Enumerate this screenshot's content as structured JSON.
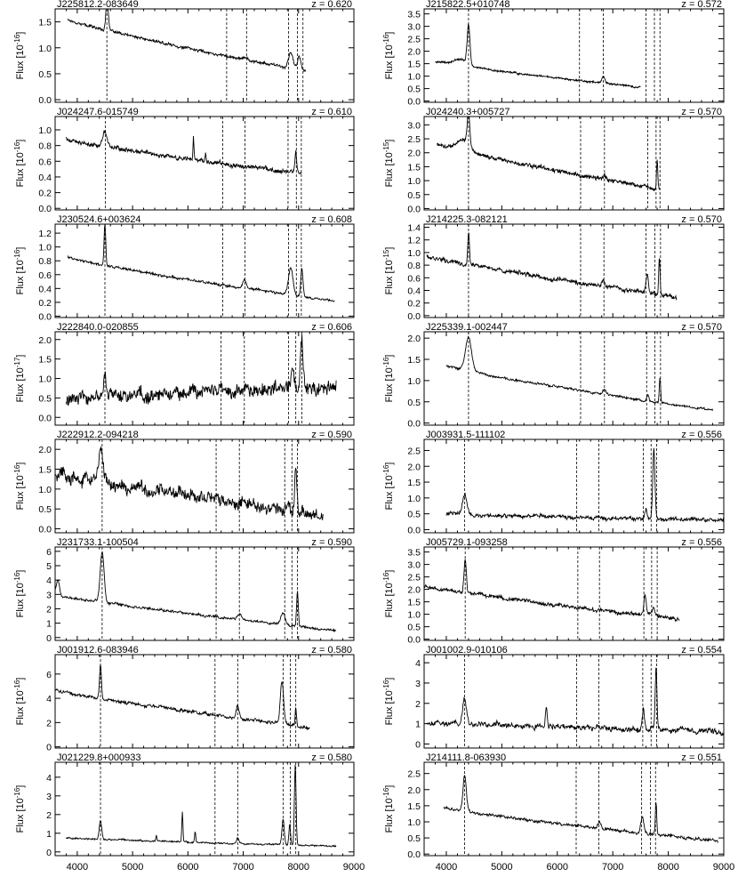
{
  "figure": {
    "x_tick_labels": [
      "4000",
      "5000",
      "6000",
      "7000",
      "8000",
      "9000"
    ],
    "ylabel_prefix": "Flux [10",
    "ylabel_suffix": "]"
  },
  "chart_data": [
    {
      "type": "line",
      "title": "J225812.2-083649",
      "redshift": "z = 0.620",
      "ylabel_exp": "-16",
      "xlim": [
        3600,
        9000
      ],
      "ylim": [
        -0.05,
        1.75
      ],
      "yticks": [
        0.0,
        0.5,
        1.0,
        1.5
      ],
      "x_start": 3830,
      "x_end": 8130,
      "start": 1.55,
      "end": 0.55,
      "noise": 0.03,
      "lines": [
        [
          4540,
          0.6,
          22
        ],
        [
          7050,
          0.05,
          40
        ],
        [
          7860,
          0.3,
          40
        ],
        [
          8010,
          0.25,
          30
        ]
      ],
      "dashed_x": [
        4535,
        6700,
        7060,
        7820,
        7980,
        8080
      ]
    },
    {
      "type": "line",
      "title": "J215822.5+010748",
      "redshift": "z = 0.572",
      "ylabel_exp": "-16",
      "xlim": [
        3600,
        9000
      ],
      "ylim": [
        -0.05,
        3.7
      ],
      "yticks": [
        0.0,
        0.5,
        1.0,
        1.5,
        2.0,
        2.5,
        3.0,
        3.5
      ],
      "x_start": 3800,
      "x_end": 7500,
      "start": 1.6,
      "end": 0.55,
      "noise": 0.04,
      "lines": [
        [
          4400,
          1.6,
          25
        ],
        [
          6830,
          0.3,
          25
        ],
        [
          4250,
          0.25,
          120
        ]
      ],
      "dashed_x": [
        4400,
        6400,
        6830,
        7600,
        7750,
        7850
      ]
    },
    {
      "type": "line",
      "title": "J024247.6-015749",
      "redshift": "z = 0.610",
      "ylabel_exp": "-16",
      "xlim": [
        3600,
        9000
      ],
      "ylim": [
        -0.02,
        1.17
      ],
      "yticks": [
        0.0,
        0.2,
        0.4,
        0.6,
        0.8,
        1.0
      ],
      "x_start": 3800,
      "x_end": 8050,
      "start": 0.88,
      "end": 0.45,
      "noise": 0.03,
      "lines": [
        [
          4500,
          0.2,
          40
        ],
        [
          6100,
          0.3,
          8
        ],
        [
          6320,
          0.1,
          8
        ],
        [
          7950,
          0.25,
          15
        ]
      ],
      "dashed_x": [
        4510,
        6630,
        7030,
        7810,
        7960,
        8050
      ]
    },
    {
      "type": "line",
      "title": "J024240.3+005727",
      "redshift": "z = 0.570",
      "ylabel_exp": "-15",
      "xlim": [
        3600,
        9000
      ],
      "ylim": [
        -0.05,
        3.3
      ],
      "yticks": [
        0.0,
        0.5,
        1.0,
        1.5,
        2.0,
        2.5,
        3.0
      ],
      "x_start": 3830,
      "x_end": 7850,
      "start": 2.3,
      "end": 0.7,
      "noise": 0.08,
      "lines": [
        [
          4400,
          1.2,
          22
        ],
        [
          6850,
          0.15,
          30
        ],
        [
          7800,
          1.0,
          12
        ],
        [
          4300,
          0.4,
          120
        ]
      ],
      "dashed_x": [
        4400,
        6420,
        6850,
        7630,
        7780,
        7850
      ]
    },
    {
      "type": "line",
      "title": "J230524.6+003624",
      "redshift": "z = 0.608",
      "ylabel_exp": "-16",
      "xlim": [
        3600,
        9000
      ],
      "ylim": [
        -0.02,
        1.33
      ],
      "yticks": [
        0.0,
        0.2,
        0.4,
        0.6,
        0.8,
        1.0,
        1.2
      ],
      "x_start": 3830,
      "x_end": 8650,
      "start": 0.85,
      "end": 0.22,
      "noise": 0.02,
      "lines": [
        [
          4500,
          0.6,
          15
        ],
        [
          7020,
          0.12,
          30
        ],
        [
          7860,
          0.38,
          40
        ],
        [
          8060,
          0.4,
          20
        ]
      ],
      "dashed_x": [
        4500,
        6630,
        7030,
        7820,
        7960,
        8050
      ]
    },
    {
      "type": "line",
      "title": "J214225.3-082121",
      "redshift": "z = 0.570",
      "ylabel_exp": "-15",
      "xlim": [
        3600,
        9000
      ],
      "ylim": [
        -0.03,
        1.45
      ],
      "yticks": [
        0.0,
        0.2,
        0.4,
        0.6,
        0.8,
        1.0,
        1.2,
        1.4
      ],
      "x_start": 3650,
      "x_end": 8150,
      "start": 0.95,
      "end": 0.3,
      "noise": 0.04,
      "lines": [
        [
          4400,
          0.5,
          15
        ],
        [
          6830,
          0.1,
          25
        ],
        [
          7620,
          0.3,
          20
        ],
        [
          7840,
          0.6,
          12
        ]
      ],
      "dashed_x": [
        4400,
        6420,
        6840,
        7600,
        7760,
        7860
      ]
    },
    {
      "type": "line",
      "title": "J222840.0-020855",
      "redshift": "z = 0.606",
      "ylabel_exp": "-17",
      "xlim": [
        3600,
        9000
      ],
      "ylim": [
        -0.2,
        2.2
      ],
      "yticks": [
        0.0,
        0.5,
        1.0,
        1.5,
        2.0
      ],
      "x_start": 3800,
      "x_end": 8680,
      "start": 0.45,
      "end": 0.8,
      "noise": 0.2,
      "lines": [
        [
          4500,
          0.7,
          15
        ],
        [
          8060,
          1.2,
          25
        ],
        [
          7900,
          0.4,
          30
        ]
      ],
      "dashed_x": [
        4500,
        6600,
        7020,
        7820,
        7950,
        8060
      ]
    },
    {
      "type": "line",
      "title": "J225339.1-002447",
      "redshift": "z = 0.570",
      "ylabel_exp": "-16",
      "xlim": [
        3600,
        9000
      ],
      "ylim": [
        -0.05,
        2.15
      ],
      "yticks": [
        0.0,
        0.5,
        1.0,
        1.5,
        2.0
      ],
      "x_start": 4000,
      "x_end": 8800,
      "start": 1.35,
      "end": 0.3,
      "noise": 0.03,
      "lines": [
        [
          4400,
          0.8,
          55
        ],
        [
          6850,
          0.1,
          30
        ],
        [
          7850,
          0.6,
          12
        ],
        [
          7630,
          0.15,
          20
        ]
      ],
      "dashed_x": [
        4400,
        6420,
        6850,
        7610,
        7760,
        7860
      ]
    },
    {
      "type": "line",
      "title": "J222912.2-094218",
      "redshift": "z = 0.590",
      "ylabel_exp": "-16",
      "xlim": [
        3600,
        9000
      ],
      "ylim": [
        -0.1,
        2.25
      ],
      "yticks": [
        0.0,
        0.5,
        1.0,
        1.5,
        2.0
      ],
      "x_start": 3600,
      "x_end": 8450,
      "start": 1.4,
      "end": 0.35,
      "noise": 0.18,
      "lines": [
        [
          4430,
          0.8,
          40
        ],
        [
          7950,
          1.2,
          20
        ],
        [
          7800,
          0.3,
          40
        ]
      ],
      "dashed_x": [
        4450,
        6510,
        6930,
        7750,
        7880,
        7980
      ]
    },
    {
      "type": "line",
      "title": "J003931.5-111102",
      "redshift": "z = 0.556",
      "ylabel_exp": "-16",
      "xlim": [
        3600,
        9000
      ],
      "ylim": [
        -0.1,
        2.85
      ],
      "yticks": [
        0.0,
        0.5,
        1.0,
        1.5,
        2.0,
        2.5
      ],
      "x_start": 4000,
      "x_end": 9000,
      "start": 0.5,
      "end": 0.3,
      "noise": 0.07,
      "lines": [
        [
          4330,
          0.6,
          40
        ],
        [
          7740,
          2.2,
          20
        ],
        [
          7600,
          0.3,
          20
        ]
      ],
      "dashed_x": [
        4330,
        6350,
        6750,
        7550,
        7690,
        7790
      ]
    },
    {
      "type": "line",
      "title": "J231733.1-100504",
      "redshift": "z = 0.590",
      "ylabel_exp": "-16",
      "xlim": [
        3600,
        9000
      ],
      "ylim": [
        -0.2,
        6.3
      ],
      "yticks": [
        0,
        1,
        2,
        3,
        4,
        5,
        6
      ],
      "x_start": 3600,
      "x_end": 8680,
      "start": 3.0,
      "end": 0.5,
      "noise": 0.1,
      "lines": [
        [
          4450,
          3.5,
          35
        ],
        [
          6930,
          0.35,
          35
        ],
        [
          7720,
          0.8,
          40
        ],
        [
          7980,
          2.5,
          15
        ],
        [
          3650,
          1.0,
          30
        ]
      ],
      "dashed_x": [
        4450,
        6510,
        6930,
        7750,
        7880,
        7980
      ]
    },
    {
      "type": "line",
      "title": "J005729.1-093258",
      "redshift": "z = 0.556",
      "ylabel_exp": "-16",
      "xlim": [
        3600,
        9000
      ],
      "ylim": [
        -0.05,
        3.7
      ],
      "yticks": [
        0.0,
        0.5,
        1.0,
        1.5,
        2.0,
        2.5,
        3.0,
        3.5
      ],
      "x_start": 3600,
      "x_end": 8200,
      "start": 2.15,
      "end": 0.8,
      "noise": 0.09,
      "lines": [
        [
          4340,
          1.3,
          22
        ],
        [
          7580,
          0.8,
          20
        ],
        [
          7730,
          0.3,
          25
        ]
      ],
      "dashed_x": [
        4340,
        6370,
        6760,
        7560,
        7700,
        7800
      ]
    },
    {
      "type": "line",
      "title": "J001912.6-083946",
      "redshift": "z = 0.580",
      "ylabel_exp": "-16",
      "xlim": [
        3600,
        9000
      ],
      "ylim": [
        -0.1,
        7.6
      ],
      "yticks": [
        0,
        2,
        4,
        6
      ],
      "x_start": 3600,
      "x_end": 8200,
      "start": 4.7,
      "end": 1.6,
      "noise": 0.15,
      "lines": [
        [
          4420,
          2.8,
          18
        ],
        [
          6900,
          1.0,
          25
        ],
        [
          7700,
          3.5,
          30
        ],
        [
          7950,
          1.5,
          12
        ]
      ],
      "dashed_x": [
        4420,
        6490,
        6900,
        7720,
        7850,
        7950
      ]
    },
    {
      "type": "line",
      "title": "J001002.9-010106",
      "redshift": "z = 0.554",
      "ylabel_exp": "-16",
      "xlim": [
        3600,
        9000
      ],
      "ylim": [
        -0.2,
        4.4
      ],
      "yticks": [
        0,
        1,
        2,
        3,
        4
      ],
      "x_start": 3650,
      "x_end": 9000,
      "start": 1.05,
      "end": 0.6,
      "noise": 0.15,
      "lines": [
        [
          4330,
          1.2,
          35
        ],
        [
          5800,
          1.0,
          15
        ],
        [
          7550,
          1.0,
          20
        ],
        [
          7780,
          3.1,
          15
        ]
      ],
      "dashed_x": [
        4330,
        6350,
        6750,
        7540,
        7690,
        7790
      ]
    },
    {
      "type": "line",
      "title": "J021229.8+000933",
      "redshift": "z = 0.580",
      "ylabel_exp": "-16",
      "xlim": [
        3600,
        9000
      ],
      "ylim": [
        -0.2,
        4.8
      ],
      "yticks": [
        0,
        1,
        2,
        3,
        4
      ],
      "x_start": 3800,
      "x_end": 8680,
      "start": 0.75,
      "end": 0.3,
      "noise": 0.05,
      "lines": [
        [
          4420,
          1.0,
          22
        ],
        [
          5900,
          1.6,
          10
        ],
        [
          6130,
          0.6,
          10
        ],
        [
          6900,
          0.3,
          20
        ],
        [
          7720,
          1.4,
          20
        ],
        [
          7840,
          1.1,
          15
        ],
        [
          7940,
          4.3,
          15
        ],
        [
          5430,
          0.3,
          10
        ]
      ],
      "dashed_x": [
        4420,
        6490,
        6900,
        7720,
        7850,
        7950
      ]
    },
    {
      "type": "line",
      "title": "J214111.8-063930",
      "redshift": "z = 0.551",
      "ylabel_exp": "-16",
      "xlim": [
        3600,
        9000
      ],
      "ylim": [
        -0.05,
        2.85
      ],
      "yticks": [
        0.0,
        0.5,
        1.0,
        1.5,
        2.0,
        2.5
      ],
      "x_start": 3950,
      "x_end": 8900,
      "start": 1.45,
      "end": 0.4,
      "noise": 0.05,
      "lines": [
        [
          4330,
          1.1,
          30
        ],
        [
          6760,
          0.18,
          30
        ],
        [
          7530,
          0.5,
          25
        ],
        [
          7780,
          1.0,
          12
        ]
      ],
      "dashed_x": [
        4330,
        6340,
        6750,
        7520,
        7680,
        7770
      ]
    }
  ]
}
